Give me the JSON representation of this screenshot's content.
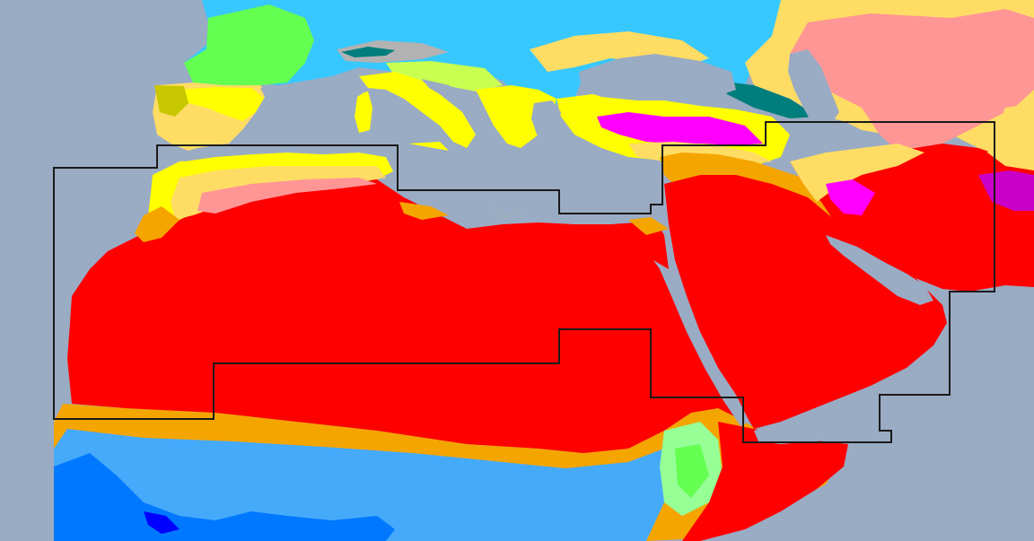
{
  "map": {
    "colors": {
      "water": "#9aabc4",
      "BWh": "#ff0000",
      "BWk": "#ff9696",
      "BSh": "#f5a500",
      "BSk": "#ffdc64",
      "Aw": "#46aafa",
      "Am": "#0078ff",
      "Af": "#0000ff",
      "Csa": "#ffff00",
      "Csb": "#c8c800",
      "Cfa": "#c8ff50",
      "Cfb": "#64ff50",
      "Cwb": "#96ff96",
      "Dsa": "#ff00ff",
      "Dsb": "#c800c8",
      "Dfb": "#37c8ff",
      "Dfc": "#007d7d",
      "ET": "#b2b2b2",
      "region_outline": "#1a1a1a"
    }
  }
}
